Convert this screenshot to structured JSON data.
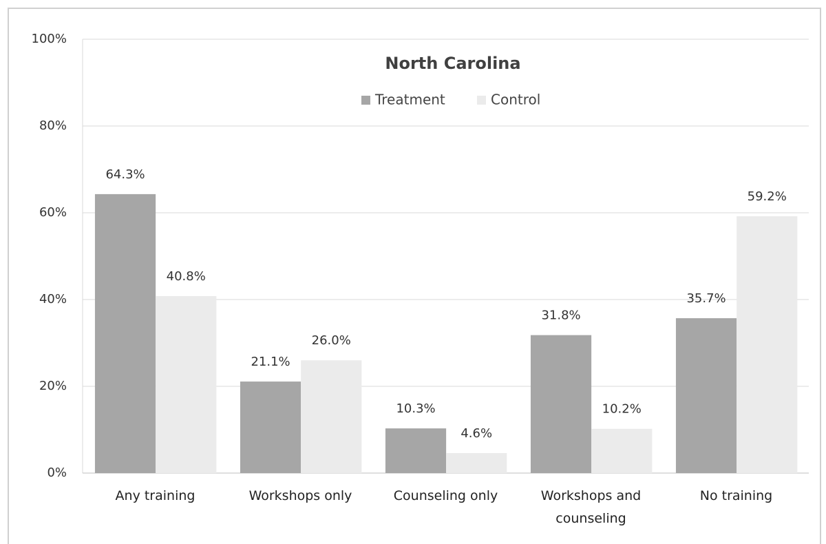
{
  "chart_data": {
    "type": "bar",
    "title": "North Carolina",
    "categories": [
      "Any training",
      "Workshops only",
      "Counseling only",
      "Workshops and counseling",
      "No training"
    ],
    "series": [
      {
        "name": "Treatment",
        "color": "#a6a6a6",
        "values": [
          64.3,
          21.1,
          10.3,
          31.8,
          35.7
        ],
        "value_labels": [
          "64.3%",
          "21.1%",
          "10.3%",
          "31.8%",
          "35.7%"
        ]
      },
      {
        "name": "Control",
        "color": "#ebebeb",
        "values": [
          40.8,
          26.0,
          4.6,
          10.2,
          59.2
        ],
        "value_labels": [
          "40.8%",
          "26.0%",
          "4.6%",
          "10.2%",
          "59.2%"
        ]
      }
    ],
    "ylim": [
      0,
      100
    ],
    "yticks": [
      {
        "value": 0,
        "label": "0%"
      },
      {
        "value": 20,
        "label": "20%"
      },
      {
        "value": 40,
        "label": "40%"
      },
      {
        "value": 60,
        "label": "60%"
      },
      {
        "value": 80,
        "label": "80%"
      },
      {
        "value": 100,
        "label": "100%"
      }
    ],
    "grid": true,
    "legend": "top"
  }
}
